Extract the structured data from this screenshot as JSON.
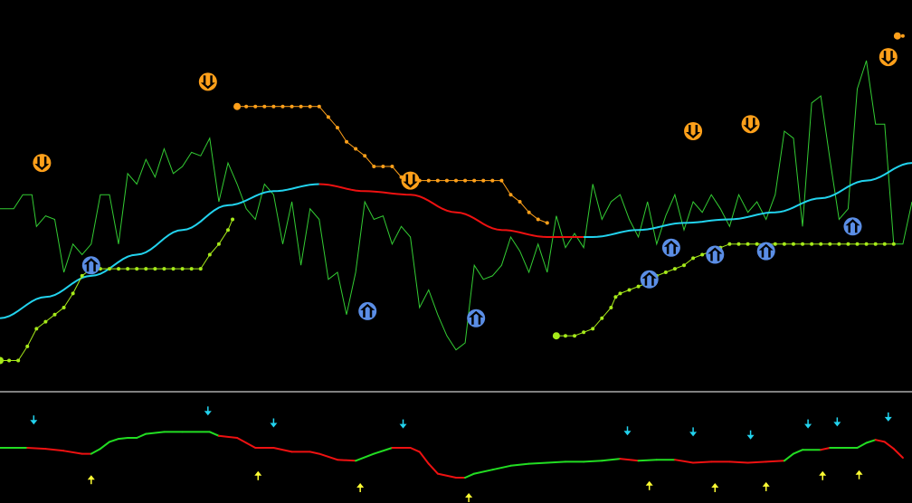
{
  "colors": {
    "background": "#000000",
    "price_line": "#33cc33",
    "ma_rising": "#22d3ee",
    "ma_falling": "#ee1111",
    "sell_stop": "#ffa01a",
    "buy_stop": "#a6ea1a",
    "buy_signal": "#5b8ee6",
    "sell_signal": "#ffa01a",
    "separator": "#ffffff",
    "osc_up": "#22dd22",
    "osc_down": "#ee1111",
    "arrow_down": "#22d3ee",
    "arrow_up": "#ffff33"
  },
  "chart_data": [
    {
      "type": "line",
      "panel": "main",
      "x_range": [
        0,
        100
      ],
      "y_range": [
        0,
        100
      ],
      "price": [
        [
          0,
          48
        ],
        [
          1.5,
          48
        ],
        [
          2.5,
          52
        ],
        [
          3.5,
          52
        ],
        [
          4,
          43
        ],
        [
          5,
          46
        ],
        [
          6,
          45
        ],
        [
          7,
          30
        ],
        [
          8,
          38
        ],
        [
          9,
          35
        ],
        [
          10,
          38
        ],
        [
          11,
          52
        ],
        [
          12,
          52
        ],
        [
          13,
          38
        ],
        [
          14,
          58
        ],
        [
          15,
          55
        ],
        [
          16,
          62
        ],
        [
          17,
          57
        ],
        [
          18,
          65
        ],
        [
          19,
          58
        ],
        [
          20,
          60
        ],
        [
          21,
          64
        ],
        [
          22,
          63
        ],
        [
          23,
          68
        ],
        [
          24,
          50
        ],
        [
          25,
          61
        ],
        [
          26,
          55
        ],
        [
          27,
          48
        ],
        [
          28,
          45
        ],
        [
          29,
          55
        ],
        [
          30,
          52
        ],
        [
          31,
          38
        ],
        [
          32,
          50
        ],
        [
          33,
          32
        ],
        [
          34,
          48
        ],
        [
          35,
          45
        ],
        [
          36,
          28
        ],
        [
          37,
          30
        ],
        [
          38,
          18
        ],
        [
          39,
          30
        ],
        [
          40,
          50
        ],
        [
          41,
          45
        ],
        [
          42,
          46
        ],
        [
          43,
          38
        ],
        [
          44,
          43
        ],
        [
          45,
          40
        ],
        [
          46,
          20
        ],
        [
          47,
          25
        ],
        [
          48,
          18
        ],
        [
          49,
          12
        ],
        [
          50,
          8
        ],
        [
          51,
          10
        ],
        [
          52,
          32
        ],
        [
          53,
          28
        ],
        [
          54,
          29
        ],
        [
          55,
          32
        ],
        [
          56,
          40
        ],
        [
          57,
          36
        ],
        [
          58,
          30
        ],
        [
          59,
          38
        ],
        [
          60,
          30
        ],
        [
          61,
          46
        ],
        [
          62,
          37
        ],
        [
          63,
          41
        ],
        [
          64,
          37
        ],
        [
          65,
          55
        ],
        [
          66,
          45
        ],
        [
          67,
          50
        ],
        [
          68,
          52
        ],
        [
          69,
          45
        ],
        [
          70,
          40
        ],
        [
          71,
          50
        ],
        [
          72,
          38
        ],
        [
          73,
          46
        ],
        [
          74,
          52
        ],
        [
          75,
          42
        ],
        [
          76,
          50
        ],
        [
          77,
          47
        ],
        [
          78,
          52
        ],
        [
          79,
          48
        ],
        [
          80,
          43
        ],
        [
          81,
          52
        ],
        [
          82,
          47
        ],
        [
          83,
          50
        ],
        [
          84,
          45
        ],
        [
          85,
          52
        ],
        [
          86,
          70
        ],
        [
          87,
          68
        ],
        [
          88,
          43
        ],
        [
          89,
          78
        ],
        [
          90,
          80
        ],
        [
          91,
          62
        ],
        [
          92,
          45
        ],
        [
          93,
          48
        ],
        [
          94,
          82
        ],
        [
          95,
          90
        ],
        [
          96,
          72
        ],
        [
          97,
          72
        ],
        [
          98,
          38
        ],
        [
          99,
          38
        ],
        [
          100,
          50
        ]
      ],
      "moving_average": [
        [
          0,
          17
        ],
        [
          5,
          23
        ],
        [
          10,
          29
        ],
        [
          15,
          35
        ],
        [
          20,
          42
        ],
        [
          25,
          49
        ],
        [
          30,
          53
        ],
        [
          35,
          55
        ],
        [
          40,
          53
        ],
        [
          45,
          52
        ],
        [
          50,
          47
        ],
        [
          55,
          42
        ],
        [
          60,
          40
        ],
        [
          65,
          40
        ],
        [
          70,
          42
        ],
        [
          75,
          44
        ],
        [
          80,
          45
        ],
        [
          85,
          47
        ],
        [
          90,
          51
        ],
        [
          95,
          56
        ],
        [
          100,
          61
        ]
      ],
      "moving_average_segments": [
        {
          "direction": "rising",
          "from": 0,
          "to": 35
        },
        {
          "direction": "falling",
          "from": 35,
          "to": 64
        },
        {
          "direction": "rising",
          "from": 64,
          "to": 100
        }
      ],
      "sell_stop_dots": [
        [
          26,
          77
        ],
        [
          27,
          77
        ],
        [
          28,
          77
        ],
        [
          29,
          77
        ],
        [
          30,
          77
        ],
        [
          31,
          77
        ],
        [
          32,
          77
        ],
        [
          33,
          77
        ],
        [
          34,
          77
        ],
        [
          35,
          77
        ],
        [
          36,
          74
        ],
        [
          37,
          71
        ],
        [
          38,
          67
        ],
        [
          39,
          65
        ],
        [
          40,
          63
        ],
        [
          41,
          60
        ],
        [
          42,
          60
        ],
        [
          43,
          60
        ],
        [
          44,
          57
        ],
        [
          45,
          56
        ],
        [
          46,
          56
        ],
        [
          47,
          56
        ],
        [
          48,
          56
        ],
        [
          49,
          56
        ],
        [
          50,
          56
        ],
        [
          51,
          56
        ],
        [
          52,
          56
        ],
        [
          53,
          56
        ],
        [
          54,
          56
        ],
        [
          55,
          56
        ],
        [
          56,
          52
        ],
        [
          57,
          50
        ],
        [
          58,
          47
        ],
        [
          59,
          45
        ],
        [
          60,
          44
        ]
      ],
      "buy_stop_dots": [
        [
          0,
          5
        ],
        [
          1,
          5
        ],
        [
          2,
          5
        ],
        [
          3,
          9
        ],
        [
          4,
          14
        ],
        [
          5,
          16
        ],
        [
          6,
          18
        ],
        [
          7,
          20
        ],
        [
          8,
          24
        ],
        [
          9,
          29
        ],
        [
          10,
          31
        ],
        [
          11,
          31
        ],
        [
          12,
          31
        ],
        [
          13,
          31
        ],
        [
          14,
          31
        ],
        [
          15,
          31
        ],
        [
          16,
          31
        ],
        [
          17,
          31
        ],
        [
          18,
          31
        ],
        [
          19,
          31
        ],
        [
          20,
          31
        ],
        [
          21,
          31
        ],
        [
          22,
          31
        ],
        [
          23,
          35
        ],
        [
          24,
          38
        ],
        [
          25,
          42
        ],
        [
          25.5,
          45
        ],
        [
          61,
          12
        ],
        [
          62,
          12
        ],
        [
          63,
          12
        ],
        [
          64,
          13
        ],
        [
          65,
          14
        ],
        [
          66,
          17
        ],
        [
          67,
          20
        ],
        [
          67.5,
          23
        ],
        [
          68,
          24
        ],
        [
          69,
          25
        ],
        [
          70,
          26
        ],
        [
          71,
          27
        ],
        [
          72,
          29
        ],
        [
          73,
          30
        ],
        [
          74,
          31
        ],
        [
          75,
          32
        ],
        [
          76,
          34
        ],
        [
          77,
          35
        ],
        [
          78,
          36
        ],
        [
          79,
          37
        ],
        [
          80,
          38
        ],
        [
          81,
          38
        ],
        [
          82,
          38
        ],
        [
          83,
          38
        ],
        [
          84,
          38
        ],
        [
          85,
          38
        ],
        [
          86,
          38
        ],
        [
          87,
          38
        ],
        [
          88,
          38
        ],
        [
          89,
          38
        ],
        [
          90,
          38
        ],
        [
          91,
          38
        ],
        [
          92,
          38
        ],
        [
          93,
          38
        ],
        [
          94,
          38
        ],
        [
          95,
          38
        ],
        [
          96,
          38
        ],
        [
          97,
          38
        ],
        [
          98,
          38
        ]
      ],
      "buy_signals": [
        [
          10,
          32
        ],
        [
          40.3,
          19
        ],
        [
          52.2,
          17
        ],
        [
          71.2,
          28
        ],
        [
          73.6,
          37
        ],
        [
          78.4,
          35
        ],
        [
          84,
          36
        ],
        [
          93.5,
          43
        ]
      ],
      "sell_signals": [
        [
          4.6,
          61
        ],
        [
          22.8,
          84
        ],
        [
          45,
          56
        ],
        [
          76,
          70
        ],
        [
          82.3,
          72
        ],
        [
          97.4,
          91
        ]
      ],
      "last_price_marker": [
        98.4,
        97
      ]
    },
    {
      "type": "line",
      "panel": "oscillator",
      "x_range": [
        0,
        100
      ],
      "y_range": [
        0,
        100
      ],
      "oscillator": [
        [
          0,
          50
        ],
        [
          3,
          50
        ],
        [
          5,
          49
        ],
        [
          7,
          47
        ],
        [
          9,
          44
        ],
        [
          10,
          44
        ],
        [
          11,
          49
        ],
        [
          12,
          56
        ],
        [
          13,
          59
        ],
        [
          14,
          60
        ],
        [
          15,
          60
        ],
        [
          16,
          64
        ],
        [
          18,
          66
        ],
        [
          20,
          66
        ],
        [
          23,
          66
        ],
        [
          24,
          62
        ],
        [
          26,
          60
        ],
        [
          27,
          55
        ],
        [
          28,
          50
        ],
        [
          30,
          50
        ],
        [
          32,
          46
        ],
        [
          34,
          46
        ],
        [
          35,
          44
        ],
        [
          37,
          38
        ],
        [
          39,
          37
        ],
        [
          41,
          44
        ],
        [
          43,
          50
        ],
        [
          45,
          50
        ],
        [
          46,
          46
        ],
        [
          47,
          34
        ],
        [
          48,
          24
        ],
        [
          50,
          20
        ],
        [
          51,
          20
        ],
        [
          52,
          24
        ],
        [
          54,
          28
        ],
        [
          56,
          32
        ],
        [
          58,
          34
        ],
        [
          60,
          35
        ],
        [
          62,
          36
        ],
        [
          64,
          36
        ],
        [
          66,
          37
        ],
        [
          68,
          39
        ],
        [
          70,
          37
        ],
        [
          72,
          38
        ],
        [
          74,
          38
        ],
        [
          76,
          35
        ],
        [
          78,
          36
        ],
        [
          80,
          36
        ],
        [
          82,
          35
        ],
        [
          84,
          36
        ],
        [
          86,
          37
        ],
        [
          87,
          44
        ],
        [
          88,
          48
        ],
        [
          90,
          48
        ],
        [
          91,
          50
        ],
        [
          92,
          50
        ],
        [
          94,
          50
        ],
        [
          95,
          55
        ],
        [
          96,
          58
        ],
        [
          97,
          56
        ],
        [
          98,
          49
        ],
        [
          99,
          40
        ]
      ],
      "oscillator_down_ranges": [
        [
          3,
          10
        ],
        [
          24,
          39
        ],
        [
          44,
          51
        ],
        [
          68,
          70
        ],
        [
          75,
          86
        ],
        [
          90,
          91
        ],
        [
          96,
          99
        ]
      ],
      "down_arrows": [
        [
          3.7,
          78
        ],
        [
          22.8,
          87
        ],
        [
          30,
          75
        ],
        [
          44.2,
          74
        ],
        [
          68.8,
          67
        ],
        [
          76,
          66
        ],
        [
          82.3,
          63
        ],
        [
          88.6,
          74
        ],
        [
          91.8,
          76
        ],
        [
          97.4,
          81
        ]
      ],
      "up_arrows": [
        [
          10,
          18
        ],
        [
          28.3,
          22
        ],
        [
          39.5,
          10
        ],
        [
          51.4,
          0
        ],
        [
          71.2,
          12
        ],
        [
          78.4,
          10
        ],
        [
          84,
          11
        ],
        [
          90.2,
          22
        ],
        [
          94.2,
          23
        ]
      ]
    }
  ]
}
